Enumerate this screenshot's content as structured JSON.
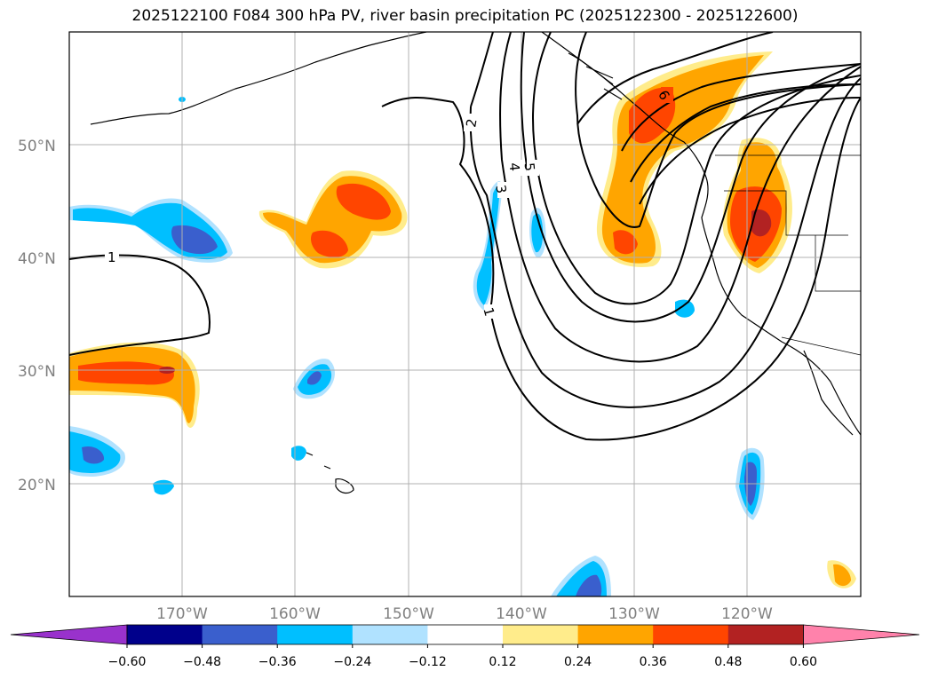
{
  "title": "2025122100 F084 300 hPa PV, river basin precipitation PC (2025122300 - 2025122600)",
  "lat_ticks": [
    "50°N",
    "40°N",
    "30°N",
    "20°N"
  ],
  "lon_ticks": [
    "170°W",
    "160°W",
    "150°W",
    "140°W",
    "130°W",
    "120°W"
  ],
  "pv_contour_labels": [
    "1",
    "1",
    "2",
    "3",
    "4",
    "5",
    "6"
  ],
  "colorbar": {
    "ticks": [
      "−0.60",
      "−0.48",
      "−0.36",
      "−0.24",
      "−0.12",
      "0.12",
      "0.24",
      "0.36",
      "0.48",
      "0.60"
    ],
    "colors": [
      "#9932cc",
      "#00008b",
      "#3a5fcd",
      "#00bfff",
      "#b0e2ff",
      "#ffffff",
      "#ffec8b",
      "#ffa500",
      "#ff4500",
      "#b22222",
      "#ff82ab"
    ]
  }
}
